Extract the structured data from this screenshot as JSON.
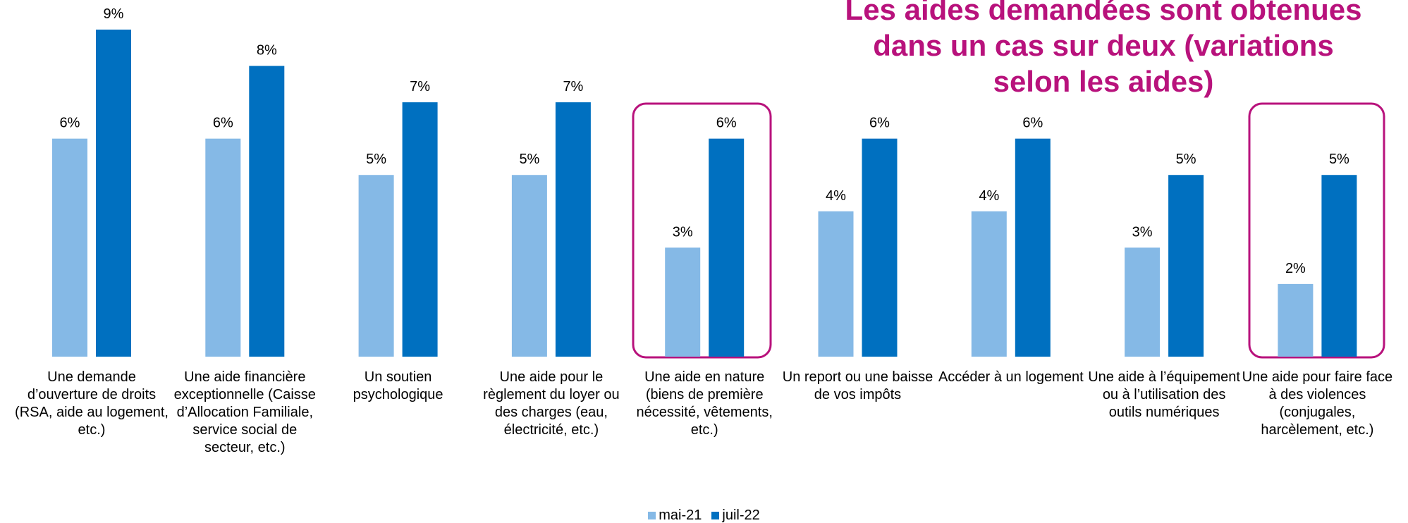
{
  "chart_data": {
    "type": "bar",
    "title": "Les aides demandées sont obtenues dans un cas sur deux (variations selon les aides)",
    "categories": [
      "Une demande d’ouverture de droits (RSA, aide au logement, etc.)",
      "Une aide financière exceptionnelle (Caisse d’Allocation Familiale, service social de secteur, etc.)",
      "Un soutien psychologique",
      "Une aide pour le règlement du loyer ou des charges (eau, électricité, etc.)",
      "Une aide en nature (biens de première nécessité, vêtements, etc.)",
      "Un report ou une baisse de vos impôts",
      "Accéder à un logement",
      "Une aide à l’équipement ou à l’utilisation des outils numériques",
      "Une aide pour faire face à des violences (conjugales, harcèlement, etc.)"
    ],
    "series": [
      {
        "name": "mai-21",
        "color": "#85b9e6",
        "values": [
          6,
          6,
          5,
          5,
          3,
          4,
          4,
          3,
          2
        ],
        "value_labels": [
          "6%",
          "6%",
          "5%",
          "5%",
          "3%",
          "4%",
          "4%",
          "3%",
          "2%"
        ]
      },
      {
        "name": "juil-22",
        "color": "#0070c0",
        "values": [
          9,
          8,
          7,
          7,
          6,
          6,
          6,
          5,
          5
        ],
        "value_labels": [
          "9%",
          "8%",
          "7%",
          "7%",
          "6%",
          "6%",
          "6%",
          "5%",
          "5%"
        ]
      }
    ]
  }
}
